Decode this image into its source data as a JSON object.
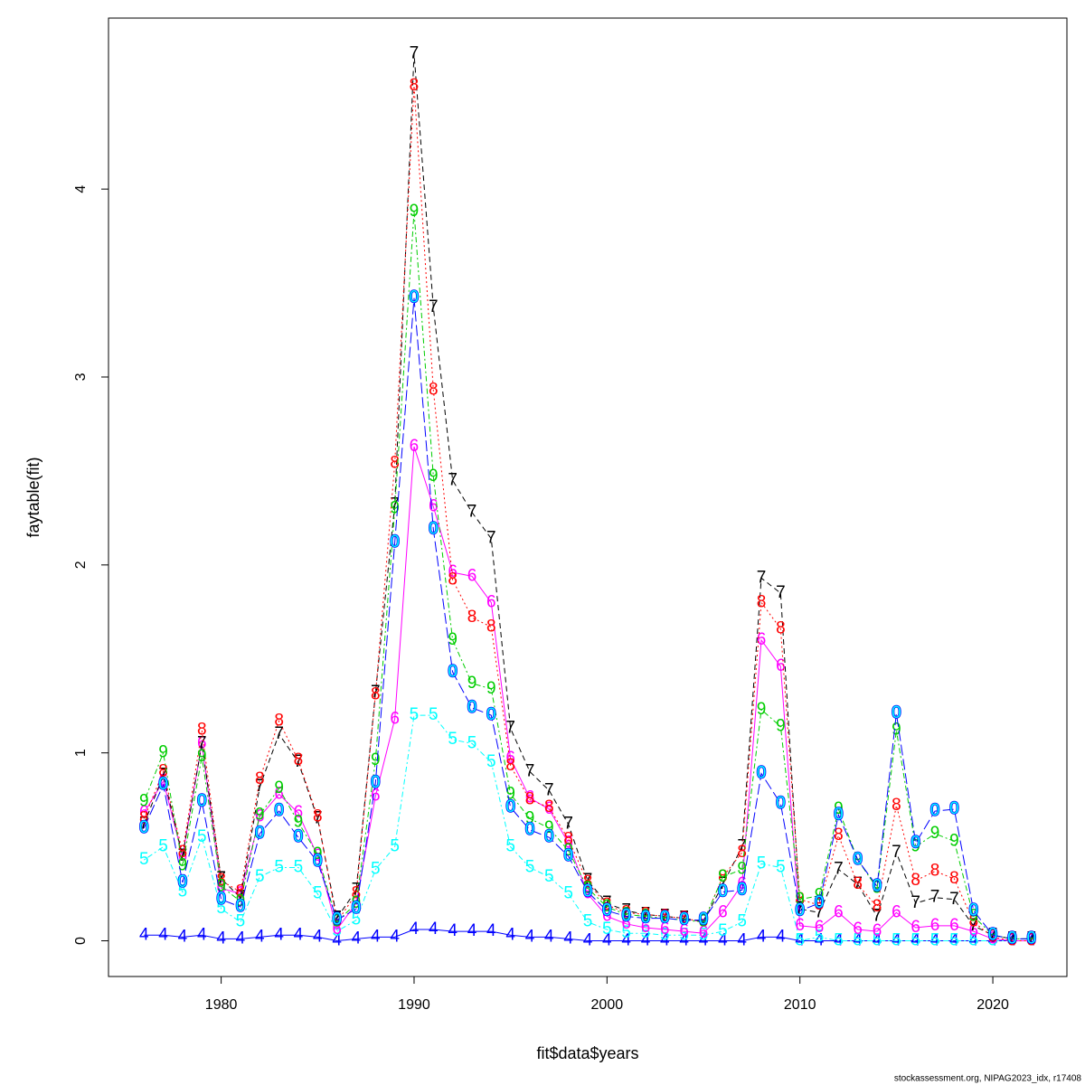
{
  "chart_data": {
    "type": "line",
    "xlabel": "fit$data$years",
    "ylabel": "faytable(fit)",
    "footer": "stockassessment.org, NIPAG2023_idx, r17408",
    "xlim": [
      1974.16,
      2023.84
    ],
    "ylim": [
      -0.19,
      4.91
    ],
    "xticks": [
      1980,
      1990,
      2000,
      2010,
      2020
    ],
    "yticks": [
      0,
      1,
      2,
      3,
      4
    ],
    "x": [
      1976,
      1977,
      1978,
      1979,
      1980,
      1981,
      1982,
      1983,
      1984,
      1985,
      1986,
      1987,
      1988,
      1989,
      1990,
      1991,
      1992,
      1993,
      1994,
      1995,
      1996,
      1997,
      1998,
      1999,
      2000,
      2001,
      2002,
      2003,
      2004,
      2005,
      2006,
      2007,
      2008,
      2009,
      2010,
      2011,
      2012,
      2013,
      2014,
      2015,
      2016,
      2017,
      2018,
      2019,
      2020,
      2021,
      2022
    ],
    "series": [
      {
        "name": "4",
        "color": "#0000ff",
        "linestyle": "solid",
        "values": [
          0.03,
          0.03,
          0.02,
          0.03,
          0.01,
          0.01,
          0.02,
          0.03,
          0.03,
          0.02,
          0,
          0.01,
          0.02,
          0.02,
          0.06,
          0.06,
          0.05,
          0.05,
          0.05,
          0.03,
          0.02,
          0.02,
          0.01,
          0,
          0,
          0,
          0,
          0,
          0,
          0,
          0,
          0,
          0.02,
          0.02,
          0,
          0,
          0,
          0,
          0,
          0,
          0,
          0,
          0,
          0,
          0,
          0,
          0
        ]
      },
      {
        "name": "5",
        "color": "#00ffff",
        "linestyle": "dashdot",
        "values": [
          0.43,
          0.5,
          0.26,
          0.55,
          0.17,
          0.1,
          0.34,
          0.39,
          0.39,
          0.25,
          0.05,
          0.11,
          0.38,
          0.5,
          1.2,
          1.2,
          1.07,
          1.05,
          0.95,
          0.5,
          0.39,
          0.34,
          0.25,
          0.1,
          0.06,
          0.04,
          0.04,
          0.03,
          0.03,
          0.03,
          0.05,
          0.1,
          0.41,
          0.39,
          0,
          0.02,
          0,
          0,
          0,
          0,
          0,
          0,
          0,
          0,
          0,
          0,
          0
        ]
      },
      {
        "name": "6",
        "color": "#ff00ff",
        "linestyle": "solid",
        "values": [
          0.68,
          0.85,
          0.45,
          1.05,
          0.28,
          0.25,
          0.66,
          0.78,
          0.68,
          0.45,
          0.06,
          0.2,
          0.77,
          1.18,
          2.63,
          2.31,
          1.96,
          1.94,
          1.8,
          0.97,
          0.76,
          0.7,
          0.52,
          0.25,
          0.13,
          0.09,
          0.07,
          0.06,
          0.05,
          0.04,
          0.15,
          0.3,
          1.6,
          1.46,
          0.08,
          0.07,
          0.15,
          0.06,
          0.05,
          0.15,
          0.07,
          0.08,
          0.08,
          0.05,
          0.01,
          0,
          0
        ]
      },
      {
        "name": "7",
        "color": "#000000",
        "linestyle": "dashed",
        "values": [
          0.62,
          0.88,
          0.45,
          1.05,
          0.33,
          0.23,
          0.82,
          1.1,
          0.95,
          0.65,
          0.12,
          0.27,
          1.32,
          2.32,
          4.72,
          3.37,
          2.45,
          2.28,
          2.14,
          1.13,
          0.9,
          0.8,
          0.62,
          0.32,
          0.2,
          0.16,
          0.14,
          0.13,
          0.12,
          0.1,
          0.3,
          0.5,
          1.93,
          1.85,
          0.17,
          0.15,
          0.38,
          0.3,
          0.13,
          0.47,
          0.2,
          0.23,
          0.22,
          0.08,
          0.03,
          0.01,
          0.01
        ]
      },
      {
        "name": "8",
        "color": "#ff0000",
        "linestyle": "dotted",
        "values": [
          0.65,
          0.9,
          0.47,
          1.12,
          0.32,
          0.26,
          0.86,
          1.17,
          0.96,
          0.66,
          0.1,
          0.25,
          1.31,
          2.54,
          4.55,
          2.93,
          1.92,
          1.72,
          1.67,
          0.93,
          0.75,
          0.71,
          0.54,
          0.31,
          0.19,
          0.15,
          0.14,
          0.13,
          0.12,
          0.1,
          0.34,
          0.47,
          1.8,
          1.66,
          0.22,
          0.19,
          0.56,
          0.3,
          0.18,
          0.72,
          0.32,
          0.37,
          0.33,
          0.1,
          0.02,
          0,
          0
        ]
      },
      {
        "name": "9",
        "color": "#00cd00",
        "linestyle": "dashdot",
        "values": [
          0.74,
          1,
          0.4,
          0.98,
          0.29,
          0.21,
          0.67,
          0.81,
          0.63,
          0.46,
          0.1,
          0.2,
          0.96,
          2.3,
          3.88,
          2.47,
          1.6,
          1.37,
          1.34,
          0.78,
          0.65,
          0.6,
          0.48,
          0.28,
          0.18,
          0.14,
          0.13,
          0.12,
          0.11,
          0.1,
          0.34,
          0.38,
          1.23,
          1.14,
          0.22,
          0.24,
          0.7,
          0.43,
          0.28,
          1.12,
          0.5,
          0.57,
          0.53,
          0.13,
          0.03,
          0.01,
          0.01
        ]
      },
      {
        "name": "0",
        "color": "#00ffff",
        "edge_color": "#0000ff",
        "linestyle": "longdash",
        "values": [
          0.6,
          0.83,
          0.31,
          0.74,
          0.22,
          0.18,
          0.57,
          0.69,
          0.55,
          0.42,
          0.11,
          0.17,
          0.84,
          2.12,
          3.42,
          2.19,
          1.43,
          1.24,
          1.2,
          0.71,
          0.59,
          0.55,
          0.45,
          0.26,
          0.16,
          0.13,
          0.12,
          0.12,
          0.11,
          0.11,
          0.26,
          0.27,
          0.89,
          0.73,
          0.16,
          0.2,
          0.67,
          0.43,
          0.29,
          1.21,
          0.52,
          0.69,
          0.7,
          0.16,
          0.03,
          0.01,
          0.01
        ]
      }
    ]
  }
}
